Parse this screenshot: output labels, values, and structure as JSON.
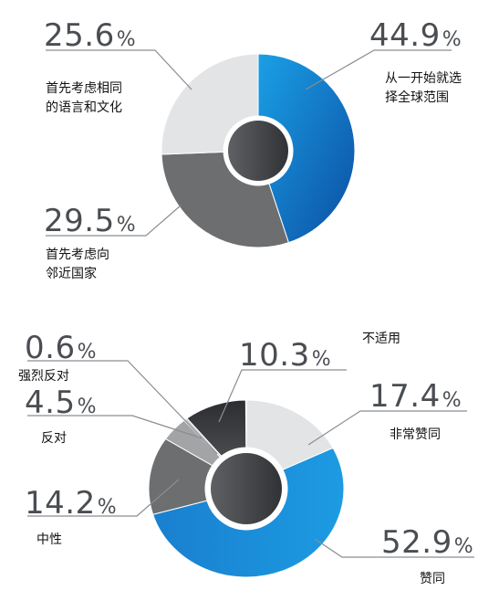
{
  "chart_data": [
    {
      "type": "pie",
      "series": [
        {
          "value": 44.9,
          "pct": "44.9%",
          "label_lines": [
            "从一开始就选",
            "择全球范围"
          ],
          "color": "#1f7fc9"
        },
        {
          "value": 29.5,
          "pct": "29.5%",
          "label_lines": [
            "首先考虑向",
            "邻近国家"
          ],
          "color": "#6d6e70"
        },
        {
          "value": 25.6,
          "pct": "25.6%",
          "label_lines": [
            "首先考虑相同",
            "的语言和文化"
          ],
          "color": "#e3e4e6"
        }
      ]
    },
    {
      "type": "pie",
      "series": [
        {
          "value": 17.4,
          "pct": "17.4%",
          "label_lines": [
            "非常赞同"
          ],
          "color": "#e3e4e6"
        },
        {
          "value": 52.9,
          "pct": "52.9%",
          "label_lines": [
            "赞同"
          ],
          "color": "#1f8fd6"
        },
        {
          "value": 14.2,
          "pct": "14.2%",
          "label_lines": [
            "中性"
          ],
          "color": "#6d6e70"
        },
        {
          "value": 4.5,
          "pct": "4.5%",
          "label_lines": [
            "反对"
          ],
          "color": "#9a9b9d"
        },
        {
          "value": 0.6,
          "pct": "0.6%",
          "label_lines": [
            "强烈反对"
          ],
          "color": "#bdbec0"
        },
        {
          "value": 10.3,
          "pct": "10.3%",
          "label_lines": [
            "不适用"
          ],
          "color": "#3b3c3e"
        }
      ]
    }
  ]
}
